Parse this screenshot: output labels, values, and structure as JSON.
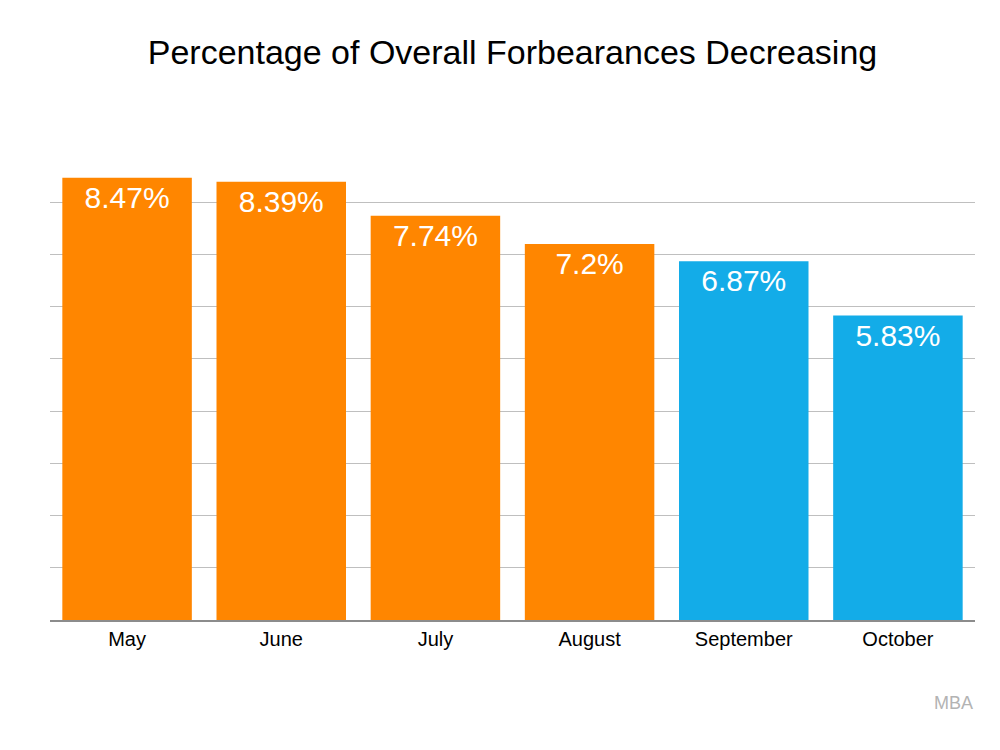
{
  "chart_data": {
    "type": "bar",
    "title": "Percentage of Overall Forbearances Decreasing",
    "categories": [
      "May",
      "June",
      "July",
      "August",
      "September",
      "October"
    ],
    "values": [
      8.47,
      8.39,
      7.74,
      7.2,
      6.87,
      5.83
    ],
    "value_labels": [
      "8.47%",
      "8.39%",
      "7.74%",
      "7.2%",
      "6.87%",
      "5.83%"
    ],
    "colors": [
      "#ff8600",
      "#ff8600",
      "#ff8600",
      "#ff8600",
      "#13ace8",
      "#13ace8"
    ],
    "data_labels": true,
    "ylim": [
      0,
      9
    ],
    "yticks": [
      0,
      1,
      2,
      3,
      4,
      5,
      6,
      7,
      8,
      9
    ],
    "grid": true,
    "tick_labels": "x",
    "source": "MBA"
  }
}
